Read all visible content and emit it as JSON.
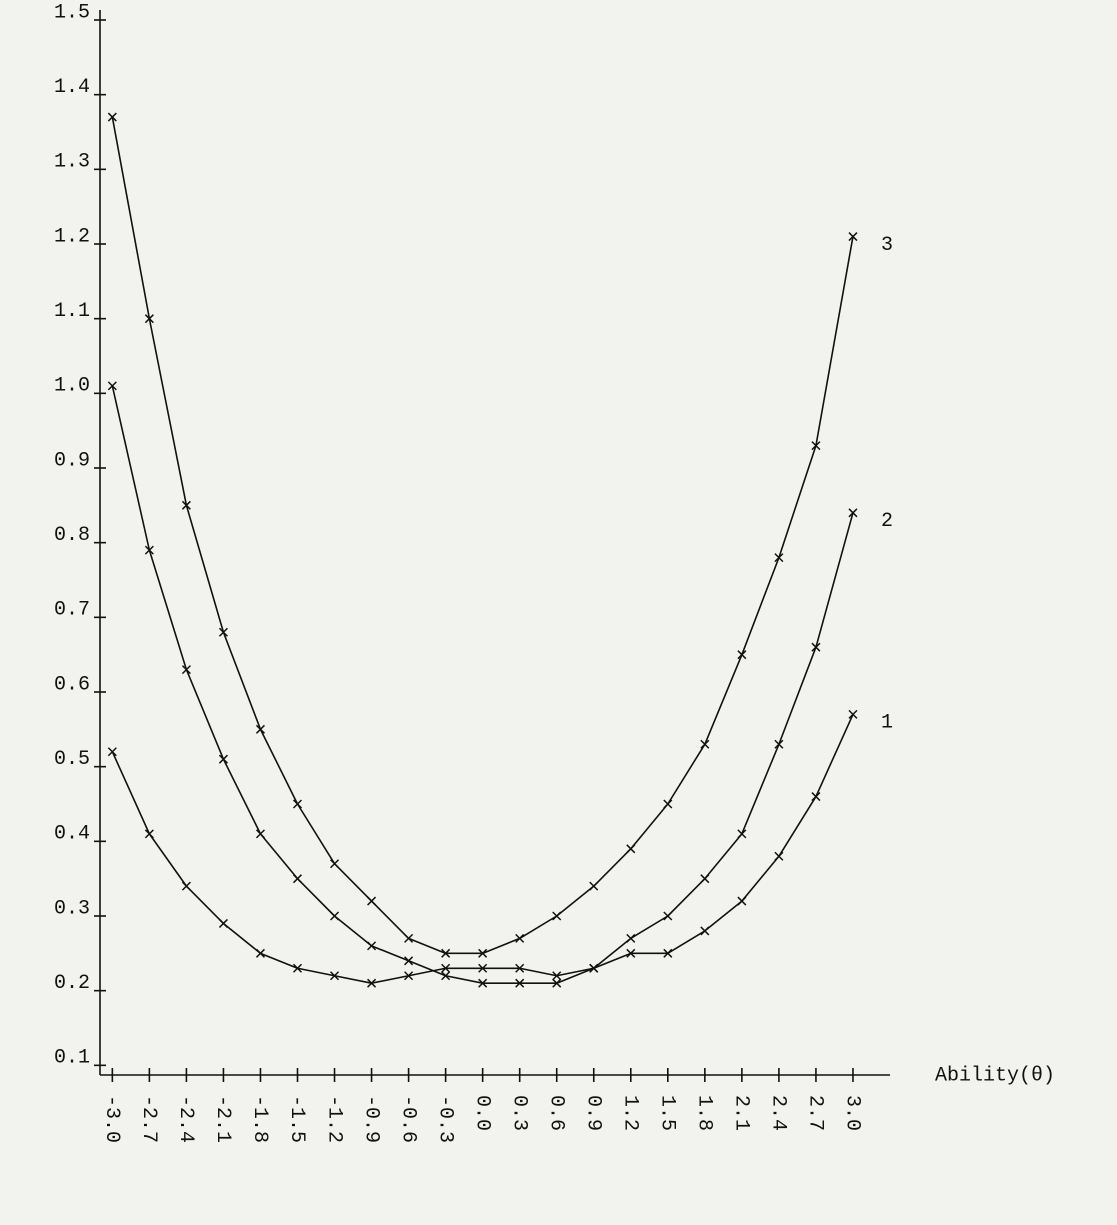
{
  "chart_data": {
    "type": "line",
    "x_label": "Ability(θ)",
    "x": [
      -3.0,
      -2.7,
      -2.4,
      -2.1,
      -1.8,
      -1.5,
      -1.2,
      -0.9,
      -0.6,
      -0.3,
      0.0,
      0.3,
      0.6,
      0.9,
      1.2,
      1.5,
      1.8,
      2.1,
      2.4,
      2.7,
      3.0
    ],
    "series": [
      {
        "name": "1",
        "color": "#111111",
        "values": [
          0.52,
          0.41,
          0.34,
          0.29,
          0.25,
          0.23,
          0.22,
          0.21,
          0.22,
          0.23,
          0.23,
          0.23,
          0.22,
          0.23,
          0.25,
          0.25,
          0.28,
          0.32,
          0.38,
          0.46,
          0.57
        ]
      },
      {
        "name": "2",
        "color": "#111111",
        "values": [
          1.01,
          0.79,
          0.63,
          0.51,
          0.41,
          0.35,
          0.3,
          0.26,
          0.24,
          0.22,
          0.21,
          0.21,
          0.21,
          0.23,
          0.27,
          0.3,
          0.35,
          0.41,
          0.53,
          0.66,
          0.84
        ]
      },
      {
        "name": "3",
        "color": "#111111",
        "values": [
          1.37,
          1.1,
          0.85,
          0.68,
          0.55,
          0.45,
          0.37,
          0.32,
          0.27,
          0.25,
          0.25,
          0.27,
          0.3,
          0.34,
          0.39,
          0.45,
          0.53,
          0.65,
          0.78,
          0.93,
          1.21
        ]
      }
    ],
    "xlim": [
      -3.1,
      3.3
    ],
    "ylim": [
      0,
      1.5
    ],
    "xticks": [
      {
        "value": -3.0,
        "label": "-3.0"
      },
      {
        "value": -2.7,
        "label": "-2.7"
      },
      {
        "value": -2.4,
        "label": "-2.4"
      },
      {
        "value": -2.1,
        "label": "-2.1"
      },
      {
        "value": -1.8,
        "label": "-1.8"
      },
      {
        "value": -1.5,
        "label": "-1.5"
      },
      {
        "value": -1.2,
        "label": "-1.2"
      },
      {
        "value": -0.9,
        "label": "-0.9"
      },
      {
        "value": -0.6,
        "label": "-0.6"
      },
      {
        "value": -0.3,
        "label": "-0.3"
      },
      {
        "value": 0.0,
        "label": "0.0"
      },
      {
        "value": 0.3,
        "label": "0.3"
      },
      {
        "value": 0.6,
        "label": "0.6"
      },
      {
        "value": 0.9,
        "label": "0.9"
      },
      {
        "value": 1.2,
        "label": "1.2"
      },
      {
        "value": 1.5,
        "label": "1.5"
      },
      {
        "value": 1.8,
        "label": "1.8"
      },
      {
        "value": 2.1,
        "label": "2.1"
      },
      {
        "value": 2.4,
        "label": "2.4"
      },
      {
        "value": 2.7,
        "label": "2.7"
      },
      {
        "value": 3.0,
        "label": "3.0"
      }
    ],
    "yticks": [
      0.1,
      0.2,
      0.3,
      0.4,
      0.5,
      0.6,
      0.7,
      0.8,
      0.9,
      {
        "value": 1.0,
        "label": "1.0"
      },
      1.1,
      1.2,
      1.3,
      1.4,
      1.5
    ]
  }
}
